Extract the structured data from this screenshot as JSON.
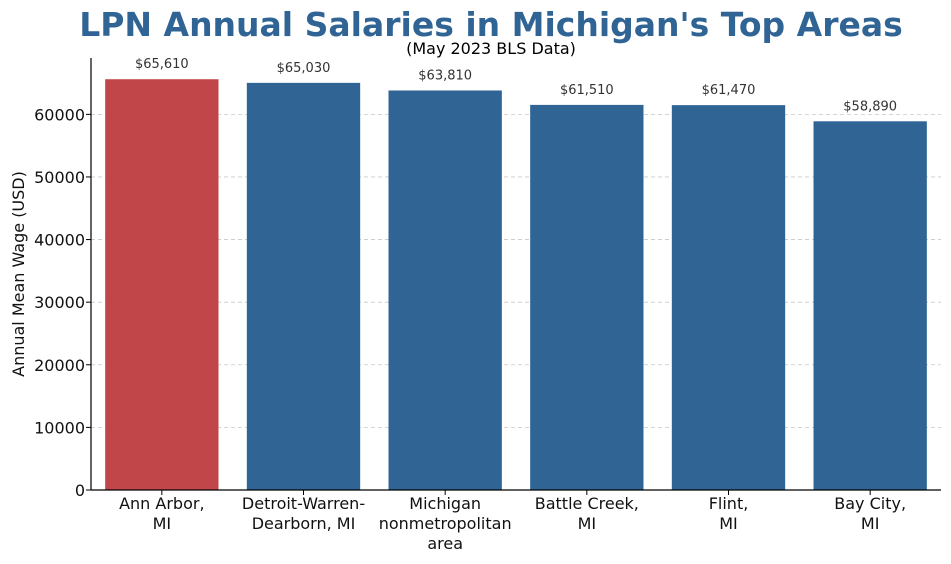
{
  "chart_data": {
    "type": "bar",
    "title": "LPN Annual Salaries in Michigan's Top Areas",
    "subtitle": "(May 2023 BLS Data)",
    "xlabel": "",
    "ylabel": "Annual Mean Wage (USD)",
    "ylim": [
      0,
      69000
    ],
    "yticks": [
      0,
      10000,
      20000,
      30000,
      40000,
      50000,
      60000
    ],
    "ytick_labels": [
      "0",
      "10000",
      "20000",
      "30000",
      "40000",
      "50000",
      "60000"
    ],
    "grid": "y-dashed",
    "categories": [
      [
        "Ann Arbor,",
        "MI"
      ],
      [
        "Detroit-Warren-",
        "Dearborn, MI"
      ],
      [
        "Michigan",
        "nonmetropolitan",
        "area"
      ],
      [
        "Battle Creek,",
        "MI"
      ],
      [
        "Flint,",
        "MI"
      ],
      [
        "Bay City,",
        "MI"
      ]
    ],
    "values": [
      65610,
      65030,
      63810,
      61510,
      61470,
      58890
    ],
    "value_labels": [
      "$65,610",
      "$65,030",
      "$63,810",
      "$61,510",
      "$61,470",
      "$58,890"
    ],
    "colors": [
      "#c1464a",
      "#2f6494",
      "#2f6494",
      "#2f6494",
      "#2f6494",
      "#2f6494"
    ],
    "title_color": "#2f6494"
  }
}
